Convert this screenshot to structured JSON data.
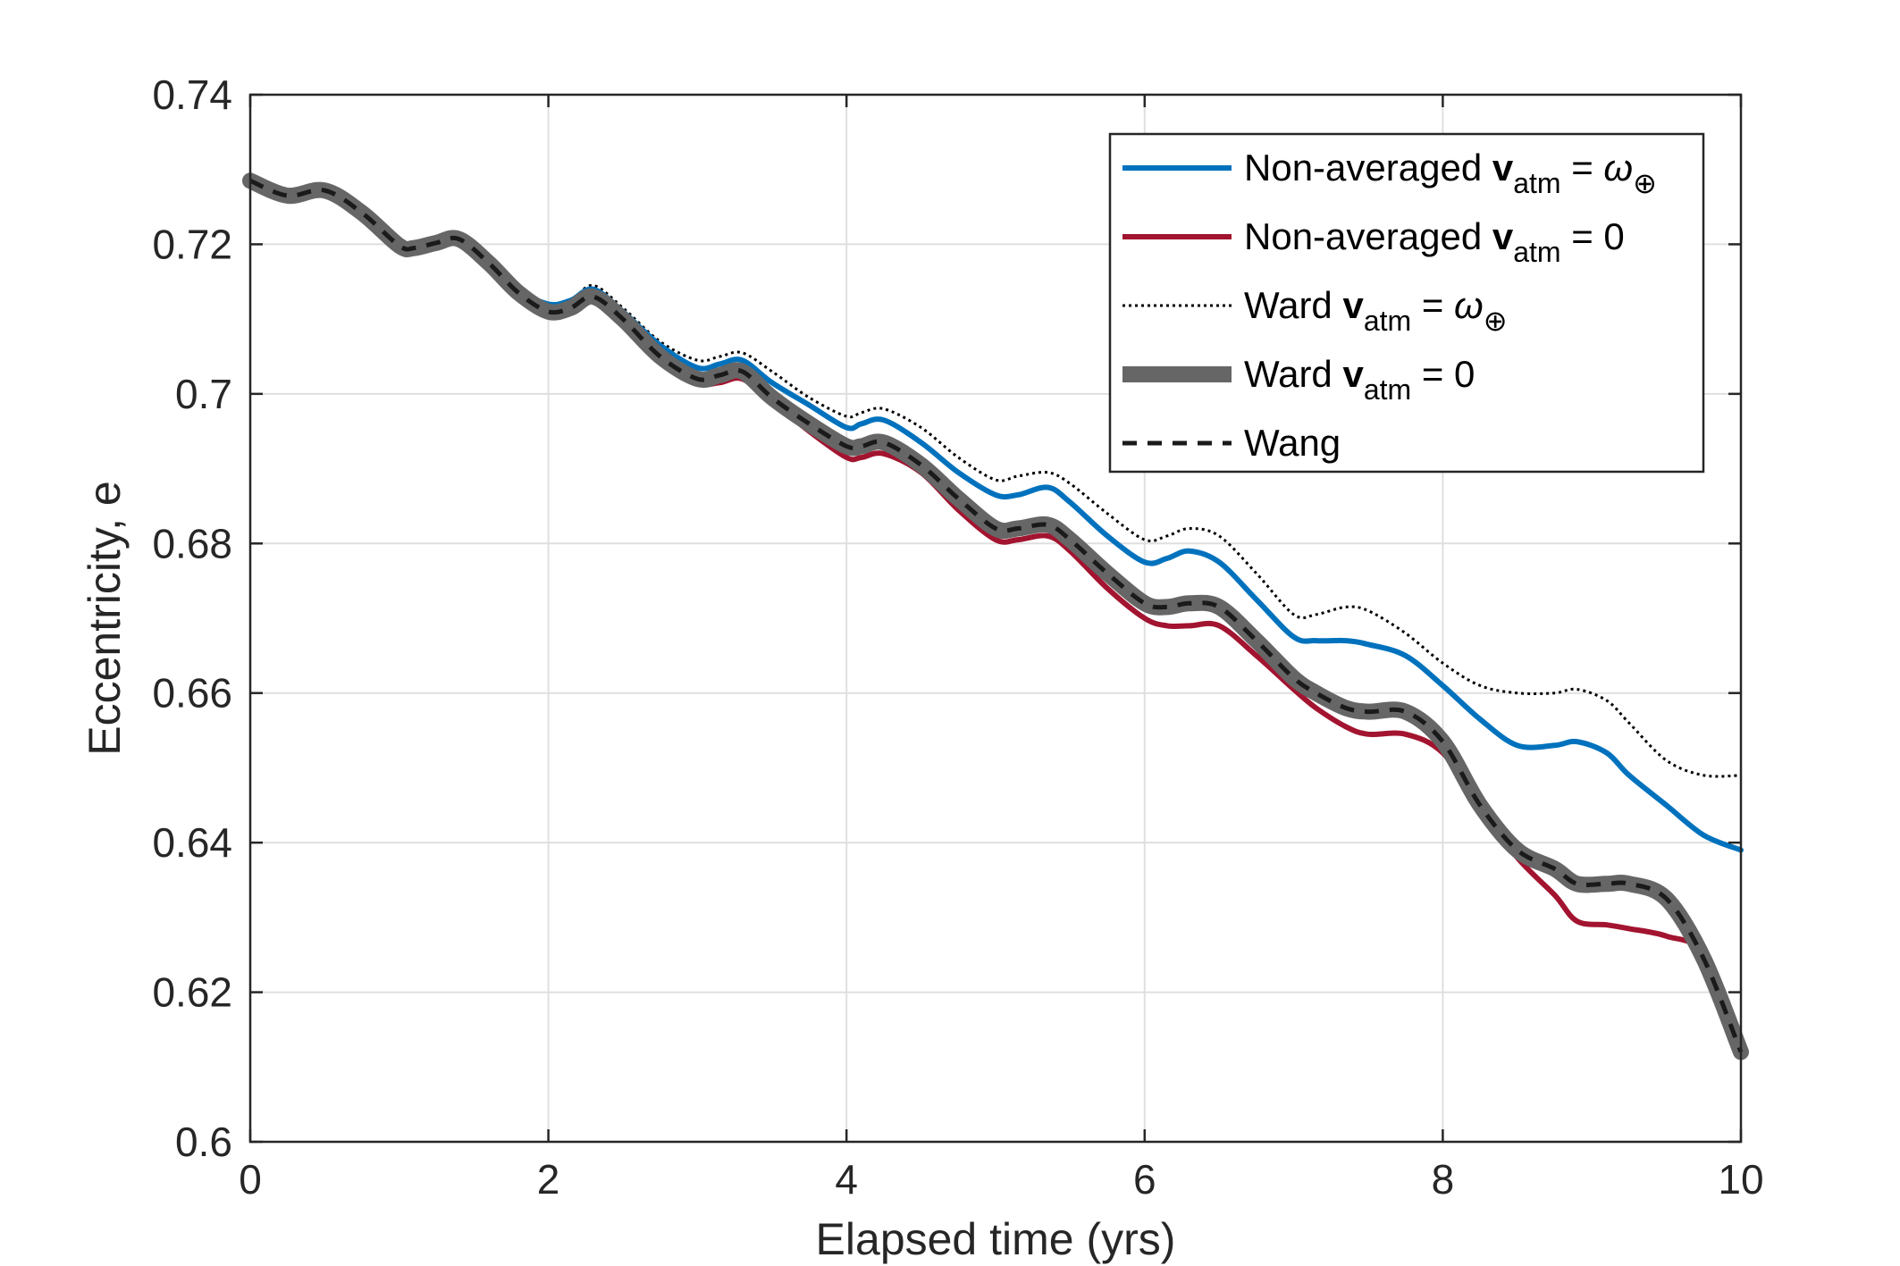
{
  "chart_data": {
    "type": "line",
    "title": "",
    "xlabel": "Elapsed time (yrs)",
    "ylabel": "Eccentricity, e",
    "xlim": [
      0,
      10
    ],
    "ylim": [
      0.6,
      0.74
    ],
    "xticks": [
      0,
      2,
      4,
      6,
      8,
      10
    ],
    "xtick_labels": [
      "0",
      "2",
      "4",
      "6",
      "8",
      "10"
    ],
    "yticks": [
      0.6,
      0.62,
      0.64,
      0.66,
      0.68,
      0.7,
      0.72,
      0.74
    ],
    "ytick_labels": [
      "0.6",
      "0.62",
      "0.64",
      "0.66",
      "0.68",
      "0.7",
      "0.72",
      "0.74"
    ],
    "grid": true,
    "legend_position": "top-right",
    "x": [
      0,
      0.25,
      0.5,
      0.75,
      1.0,
      1.1,
      1.25,
      1.4,
      1.6,
      1.8,
      2.0,
      2.15,
      2.3,
      2.5,
      2.75,
      3.0,
      3.15,
      3.3,
      3.5,
      3.75,
      4.0,
      4.1,
      4.25,
      4.5,
      4.75,
      5.0,
      5.15,
      5.35,
      5.5,
      5.75,
      6.0,
      6.15,
      6.3,
      6.5,
      6.75,
      7.0,
      7.15,
      7.35,
      7.5,
      7.75,
      8.0,
      8.25,
      8.5,
      8.75,
      8.9,
      9.1,
      9.25,
      9.5,
      9.75,
      10.0
    ],
    "series": [
      {
        "name": "Non-averaged v_atm = ω⊕",
        "color": "#0072BD",
        "style": "solid-thick",
        "values": [
          0.7285,
          0.7265,
          0.7275,
          0.7245,
          0.7205,
          0.7195,
          0.7205,
          0.721,
          0.718,
          0.714,
          0.712,
          0.7125,
          0.714,
          0.711,
          0.7065,
          0.7035,
          0.704,
          0.7045,
          0.7015,
          0.6985,
          0.6955,
          0.696,
          0.6965,
          0.6935,
          0.6895,
          0.6865,
          0.6865,
          0.6875,
          0.6855,
          0.681,
          0.6775,
          0.678,
          0.679,
          0.6775,
          0.6725,
          0.6675,
          0.667,
          0.667,
          0.6665,
          0.665,
          0.661,
          0.6565,
          0.653,
          0.653,
          0.6535,
          0.652,
          0.649,
          0.645,
          0.641,
          0.639
        ]
      },
      {
        "name": "Non-averaged v_atm = 0",
        "color": "#A2142F",
        "style": "solid-thick",
        "values": [
          0.7285,
          0.7262,
          0.727,
          0.724,
          0.7195,
          0.7195,
          0.72,
          0.7205,
          0.717,
          0.713,
          0.7105,
          0.711,
          0.7125,
          0.7095,
          0.7045,
          0.7015,
          0.7015,
          0.702,
          0.699,
          0.695,
          0.6915,
          0.6915,
          0.692,
          0.6895,
          0.6845,
          0.6805,
          0.6805,
          0.681,
          0.679,
          0.674,
          0.67,
          0.669,
          0.669,
          0.669,
          0.665,
          0.6605,
          0.658,
          0.6555,
          0.6545,
          0.6545,
          0.652,
          0.645,
          0.638,
          0.633,
          0.6295,
          0.629,
          0.6285,
          0.6275,
          0.625,
          0.613
        ]
      },
      {
        "name": "Ward v_atm = ω⊕",
        "color": "#000000",
        "style": "dotted",
        "values": [
          0.7285,
          0.7265,
          0.7275,
          0.7245,
          0.7205,
          0.7195,
          0.7205,
          0.721,
          0.718,
          0.714,
          0.712,
          0.7125,
          0.7145,
          0.7115,
          0.707,
          0.7045,
          0.705,
          0.7055,
          0.703,
          0.6995,
          0.697,
          0.6975,
          0.698,
          0.6955,
          0.6915,
          0.6885,
          0.689,
          0.6895,
          0.688,
          0.684,
          0.6805,
          0.681,
          0.682,
          0.681,
          0.676,
          0.6705,
          0.6705,
          0.6715,
          0.671,
          0.668,
          0.664,
          0.661,
          0.66,
          0.66,
          0.6605,
          0.659,
          0.656,
          0.651,
          0.649,
          0.649
        ]
      },
      {
        "name": "Ward v_atm = 0",
        "color": "#666666",
        "style": "solid-wide",
        "values": [
          0.7285,
          0.7265,
          0.7272,
          0.7242,
          0.7198,
          0.7195,
          0.7202,
          0.7207,
          0.7175,
          0.7135,
          0.711,
          0.7115,
          0.713,
          0.71,
          0.705,
          0.702,
          0.7025,
          0.703,
          0.6995,
          0.696,
          0.693,
          0.693,
          0.6935,
          0.6905,
          0.686,
          0.682,
          0.682,
          0.6825,
          0.6805,
          0.676,
          0.672,
          0.6715,
          0.672,
          0.6715,
          0.667,
          0.662,
          0.66,
          0.658,
          0.6575,
          0.6575,
          0.6535,
          0.645,
          0.639,
          0.6365,
          0.6345,
          0.6345,
          0.6345,
          0.6325,
          0.6245,
          0.612
        ]
      },
      {
        "name": "Wang",
        "color": "#1a1a1a",
        "style": "dashed",
        "values": [
          0.7285,
          0.7265,
          0.7272,
          0.7242,
          0.7198,
          0.7195,
          0.7202,
          0.7207,
          0.7175,
          0.7135,
          0.711,
          0.7115,
          0.713,
          0.71,
          0.705,
          0.702,
          0.7025,
          0.703,
          0.6995,
          0.696,
          0.693,
          0.693,
          0.6935,
          0.6905,
          0.686,
          0.682,
          0.682,
          0.6825,
          0.6805,
          0.676,
          0.672,
          0.6715,
          0.672,
          0.6715,
          0.667,
          0.662,
          0.66,
          0.658,
          0.6575,
          0.6575,
          0.6535,
          0.645,
          0.639,
          0.6365,
          0.6345,
          0.6345,
          0.6345,
          0.6325,
          0.6245,
          0.612
        ]
      }
    ],
    "legend": [
      {
        "prefix": "Non-averaged ",
        "bold": "v",
        "sub": "atm",
        "suffix": " = ",
        "omega": "ω",
        "omega_sub": "⊕",
        "zero": ""
      },
      {
        "prefix": "Non-averaged ",
        "bold": "v",
        "sub": "atm",
        "suffix": " = ",
        "omega": "",
        "omega_sub": "",
        "zero": "0"
      },
      {
        "prefix": "Ward ",
        "bold": "v",
        "sub": "atm",
        "suffix": " = ",
        "omega": "ω",
        "omega_sub": "⊕",
        "zero": ""
      },
      {
        "prefix": "Ward ",
        "bold": "v",
        "sub": "atm",
        "suffix": " = ",
        "omega": "",
        "omega_sub": "",
        "zero": "0"
      },
      {
        "prefix": "Wang",
        "bold": "",
        "sub": "",
        "suffix": "",
        "omega": "",
        "omega_sub": "",
        "zero": ""
      }
    ]
  }
}
